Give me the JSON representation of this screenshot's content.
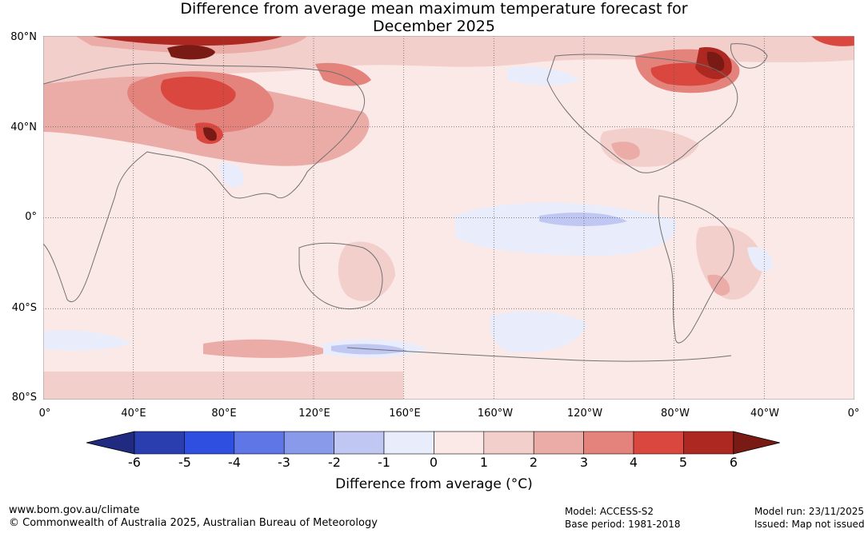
{
  "title_line1": "Difference from average mean maximum temperature forecast for",
  "title_line2": "December 2025",
  "lat_labels": [
    "80°N",
    "40°N",
    "0°",
    "40°S",
    "80°S"
  ],
  "lon_labels": [
    "0°",
    "40°E",
    "80°E",
    "120°E",
    "160°E",
    "160°W",
    "120°W",
    "80°W",
    "40°W",
    "0°"
  ],
  "colorbar": {
    "ticks": [
      "-6",
      "-5",
      "-4",
      "-3",
      "-2",
      "-1",
      "0",
      "1",
      "2",
      "3",
      "4",
      "5",
      "6"
    ],
    "label": "Difference from average (°C)",
    "colors": [
      "#1f2a80",
      "#2a3eb0",
      "#2f4fe0",
      "#5f76e6",
      "#8a9aea",
      "#bfc7f2",
      "#e9ecfb",
      "#fbe9e8",
      "#f3cfcc",
      "#ebaba6",
      "#e4827c",
      "#d9473e",
      "#ad2820",
      "#7a1a14"
    ]
  },
  "footer": {
    "url": "www.bom.gov.au/climate",
    "copyright": "© Commonwealth of Australia 2025, Australian Bureau of Meteorology",
    "model": "Model: ACCESS-S2",
    "base_period": "Base period: 1981-2018",
    "model_run": "Model run: 23/11/2025",
    "issued": "Issued: Map not issued"
  }
}
